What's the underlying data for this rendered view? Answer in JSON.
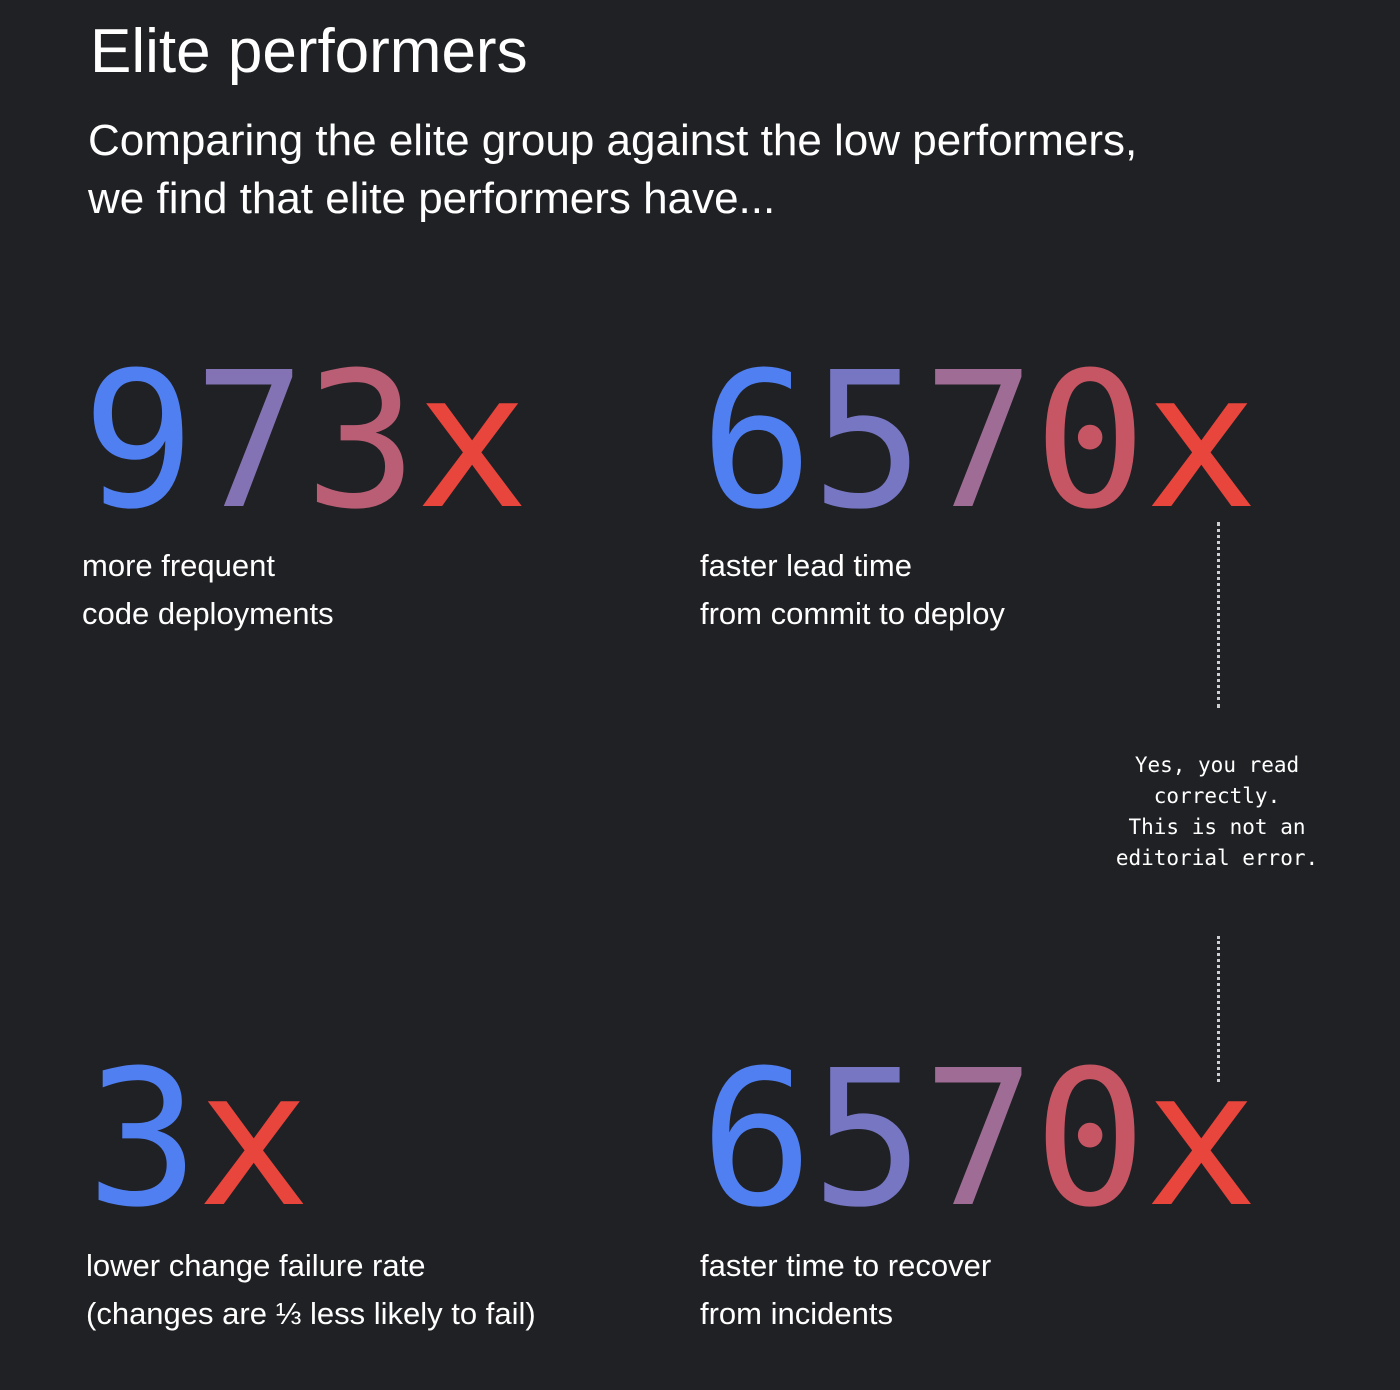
{
  "header": {
    "title": "Elite performers",
    "subtitle_lines": [
      "Comparing the elite group against the low performers,",
      "we find that elite performers have..."
    ]
  },
  "gradient": {
    "start": "#4f7ff0",
    "middle": "#9a6e9a",
    "end": "#e8453c"
  },
  "stats": [
    {
      "value": "973x",
      "description_lines": [
        "more frequent",
        "code deployments"
      ]
    },
    {
      "value": "6570x",
      "description_lines": [
        "faster lead time",
        "from commit to deploy"
      ]
    },
    {
      "value": "3x",
      "description_lines": [
        "lower change failure rate",
        "(changes are ⅓ less likely to fail)"
      ]
    },
    {
      "value": "6570x",
      "description_lines": [
        "faster time to recover",
        "from incidents"
      ]
    }
  ],
  "aside_note": {
    "lines": [
      "Yes, you read",
      "correctly.",
      "This is not an",
      "editorial error."
    ]
  }
}
